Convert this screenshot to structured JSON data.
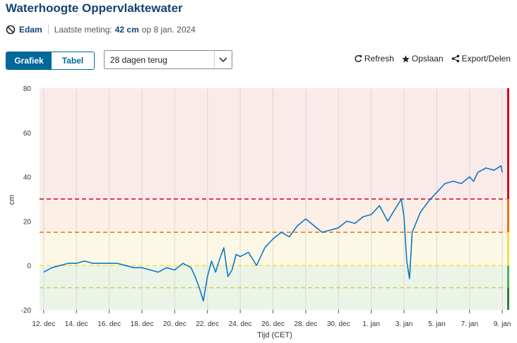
{
  "header": {
    "title": "Waterhoogte Oppervlaktewater",
    "location": "Edam",
    "last_measurement_label": "Laatste meting:",
    "last_measurement_value": "42 cm",
    "last_measurement_date": "op 8 jan. 2024"
  },
  "view_toggle": {
    "chart_label": "Grafiek",
    "table_label": "Tabel",
    "selected": "Grafiek"
  },
  "period_select": {
    "value": "28 dagen terug"
  },
  "actions": {
    "refresh_label": "Refresh",
    "save_label": "Opslaan",
    "export_label": "Export/Delen"
  },
  "icons": {
    "location": "no-entry-pin-icon",
    "dropdown": "chevron-down-icon",
    "refresh": "refresh-icon",
    "save": "star-icon",
    "export": "share-icon"
  },
  "colors": {
    "brand": "#154273",
    "accent": "#01689b",
    "series": "#0a78c8",
    "red_line": "#d0021b",
    "orange_line": "#e8740c",
    "yellow_line": "#f2e03a",
    "yellowgreen_line": "#c2d64b",
    "zone_red": "#fbeaea",
    "zone_yellow": "#fdf8e6",
    "zone_green": "#ecf4e8",
    "status_bar": [
      "#d0021b",
      "#e8740c",
      "#f2e03a",
      "#4caf50",
      "#2e7d32"
    ]
  },
  "chart_data": {
    "type": "line",
    "xlabel": "Tijd (CET)",
    "ylabel": "cm",
    "ylim": [
      -20,
      80
    ],
    "yticks": [
      -20,
      0,
      20,
      40,
      60,
      80
    ],
    "xlim": [
      "2023-12-11T18:00",
      "2024-01-09T06:00"
    ],
    "xticks": [
      "12. dec",
      "14. dec",
      "16. dec",
      "18. dec",
      "20. dec",
      "22. dec",
      "24. dec",
      "26. dec",
      "28. dec",
      "30. dec",
      "1. jan",
      "3. jan",
      "5. jan",
      "7. jan",
      "9. jan"
    ],
    "xtick_dates": [
      "2023-12-12",
      "2023-12-14",
      "2023-12-16",
      "2023-12-18",
      "2023-12-20",
      "2023-12-22",
      "2023-12-24",
      "2023-12-26",
      "2023-12-28",
      "2023-12-30",
      "2024-01-01",
      "2024-01-03",
      "2024-01-05",
      "2024-01-07",
      "2024-01-09"
    ],
    "grid": "vertical",
    "threshold_lines": [
      30,
      15,
      0,
      -10
    ],
    "zones": [
      {
        "from": 30,
        "to": 80,
        "color": "red"
      },
      {
        "from": 15,
        "to": 30,
        "color": "orange"
      },
      {
        "from": 0,
        "to": 15,
        "color": "yellow"
      },
      {
        "from": -20,
        "to": 0,
        "color": "green"
      }
    ],
    "series": [
      {
        "x": [
          "2023-12-12T00:00",
          "2023-12-12T12:00",
          "2023-12-13T00:00",
          "2023-12-13T12:00",
          "2023-12-14T00:00",
          "2023-12-14T12:00",
          "2023-12-15T00:00",
          "2023-12-15T12:00",
          "2023-12-16T00:00",
          "2023-12-16T12:00",
          "2023-12-17T00:00",
          "2023-12-17T12:00",
          "2023-12-18T00:00",
          "2023-12-18T12:00",
          "2023-12-19T00:00",
          "2023-12-19T12:00",
          "2023-12-20T00:00",
          "2023-12-20T12:00",
          "2023-12-21T00:00",
          "2023-12-21T06:00",
          "2023-12-21T12:00",
          "2023-12-21T18:00",
          "2023-12-22T00:00",
          "2023-12-22T06:00",
          "2023-12-22T12:00",
          "2023-12-22T18:00",
          "2023-12-23T00:00",
          "2023-12-23T06:00",
          "2023-12-23T12:00",
          "2023-12-23T18:00",
          "2023-12-24T00:00",
          "2023-12-24T12:00",
          "2023-12-25T00:00",
          "2023-12-25T12:00",
          "2023-12-26T00:00",
          "2023-12-26T12:00",
          "2023-12-27T00:00",
          "2023-12-27T12:00",
          "2023-12-28T00:00",
          "2023-12-28T12:00",
          "2023-12-29T00:00",
          "2023-12-29T12:00",
          "2023-12-30T00:00",
          "2023-12-30T12:00",
          "2023-12-31T00:00",
          "2023-12-31T12:00",
          "2024-01-01T00:00",
          "2024-01-01T12:00",
          "2024-01-02T00:00",
          "2024-01-02T12:00",
          "2024-01-02T20:00",
          "2024-01-03T00:00",
          "2024-01-03T04:00",
          "2024-01-03T08:00",
          "2024-01-03T12:00",
          "2024-01-04T00:00",
          "2024-01-04T12:00",
          "2024-01-05T00:00",
          "2024-01-05T12:00",
          "2024-01-06T00:00",
          "2024-01-06T12:00",
          "2024-01-07T00:00",
          "2024-01-07T06:00",
          "2024-01-07T12:00",
          "2024-01-08T00:00",
          "2024-01-08T12:00",
          "2024-01-08T22:00",
          "2024-01-09T00:00"
        ],
        "y": [
          -3,
          -1,
          0,
          1,
          1,
          2,
          1,
          1,
          1,
          1,
          0,
          -1,
          -1,
          -2,
          -3,
          -1,
          -2,
          1,
          -1,
          -5,
          -10,
          -16,
          -5,
          2,
          -3,
          3,
          8,
          -5,
          -2,
          5,
          4,
          6,
          0,
          8,
          12,
          15,
          13,
          18,
          21,
          18,
          15,
          16,
          17,
          20,
          19,
          22,
          23,
          27,
          20,
          26,
          30,
          22,
          2,
          -6,
          15,
          24,
          29,
          33,
          37,
          38,
          37,
          40,
          38,
          42,
          44,
          43,
          45,
          42
        ]
      }
    ]
  }
}
